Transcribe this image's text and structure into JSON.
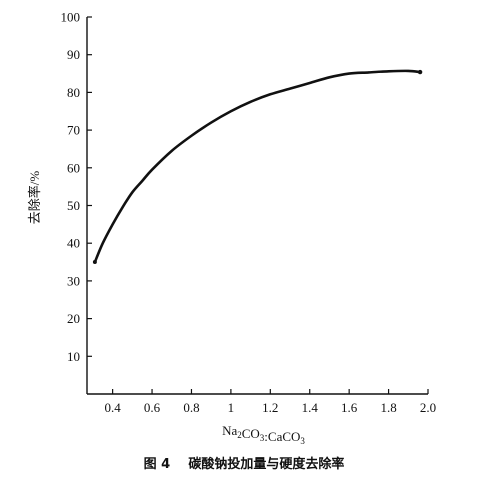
{
  "chart_data": {
    "type": "line",
    "title": "",
    "xlabel_parts": [
      {
        "text": "Na",
        "sub": false
      },
      {
        "text": "2",
        "sub": true
      },
      {
        "text": "CO",
        "sub": false
      },
      {
        "text": "3",
        "sub": true
      },
      {
        "text": ":CaCO",
        "sub": false
      },
      {
        "text": "3",
        "sub": true
      }
    ],
    "ylabel": "去除率/%",
    "xlim": [
      0.27,
      2.0
    ],
    "ylim": [
      0,
      100
    ],
    "xticks": [
      0.4,
      0.6,
      0.8,
      1.0,
      1.2,
      1.4,
      1.6,
      1.8,
      2.0
    ],
    "xtick_labels": [
      "0.4",
      "0.6",
      "0.8",
      "1",
      "1.2",
      "1.4",
      "1.6",
      "1.8",
      "2.0"
    ],
    "yticks": [
      10,
      20,
      30,
      40,
      50,
      60,
      70,
      80,
      90,
      100
    ],
    "ytick_labels": [
      "10",
      "20",
      "30",
      "40",
      "50",
      "60",
      "70",
      "80",
      "90",
      "100"
    ],
    "grid": false,
    "series": [
      {
        "x": [
          0.31,
          0.35,
          0.4,
          0.45,
          0.5,
          0.55,
          0.6,
          0.7,
          0.8,
          0.9,
          1.0,
          1.1,
          1.2,
          1.3,
          1.4,
          1.5,
          1.6,
          1.7,
          1.8,
          1.9,
          1.96
        ],
        "y": [
          35,
          40,
          45,
          49.5,
          53.5,
          56.5,
          59.5,
          64.5,
          68.5,
          72.0,
          75.0,
          77.5,
          79.5,
          81.0,
          82.5,
          84.0,
          85.0,
          85.3,
          85.6,
          85.7,
          85.4
        ]
      }
    ]
  },
  "caption": "图 4    碳酸钠投加量与硬度去除率"
}
